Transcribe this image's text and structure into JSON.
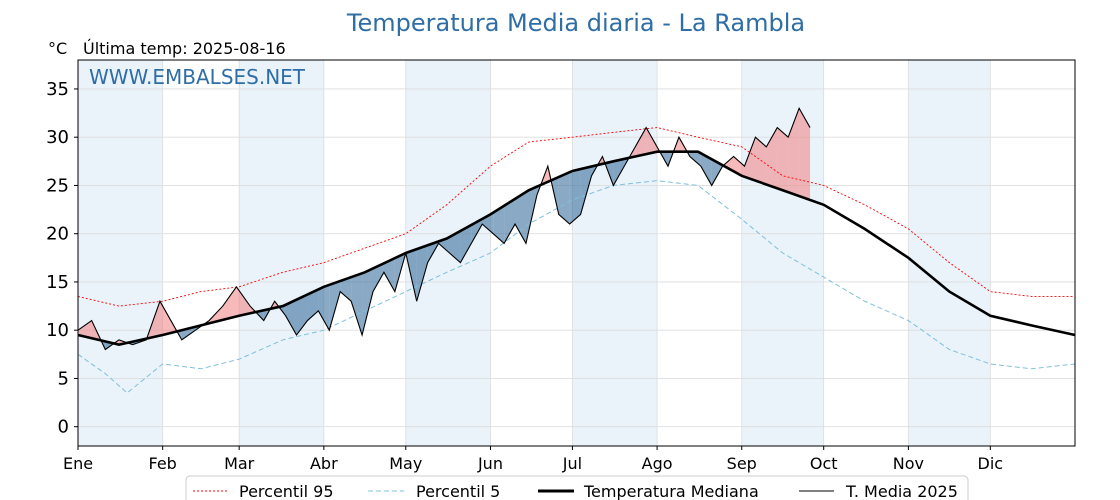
{
  "chart_data": {
    "type": "line",
    "title": "Temperatura Media diaria - La Rambla",
    "unit_label": "°C",
    "last_temp_label": "Última temp: 2025-08-16",
    "watermark": "WWW.EMBALSES.NET",
    "ylim": [
      -2,
      38
    ],
    "y_ticks": [
      0,
      5,
      10,
      15,
      20,
      25,
      30,
      35
    ],
    "x_domain_days": 365,
    "x_tick_labels": [
      "Ene",
      "Feb",
      "Mar",
      "Abr",
      "May",
      "Jun",
      "Jul",
      "Ago",
      "Sep",
      "Oct",
      "Nov",
      "Dic"
    ],
    "grid": true,
    "legend_position": "bottom",
    "colors": {
      "p95": "#ff0000",
      "p5": "#7fc1d9",
      "median": "#000000",
      "current": "#000000",
      "above": "#f08080",
      "below": "#3a6f9e",
      "band": "#eaf2fa"
    },
    "series": [
      {
        "name": "Percentil 95",
        "key": "p95",
        "points": [
          [
            0,
            13.5
          ],
          [
            15,
            12.5
          ],
          [
            31,
            13
          ],
          [
            45,
            14
          ],
          [
            59,
            14.5
          ],
          [
            75,
            16
          ],
          [
            90,
            17
          ],
          [
            105,
            18.5
          ],
          [
            120,
            20
          ],
          [
            135,
            23
          ],
          [
            151,
            27
          ],
          [
            165,
            29.5
          ],
          [
            181,
            30
          ],
          [
            196,
            30.5
          ],
          [
            212,
            31
          ],
          [
            227,
            30
          ],
          [
            243,
            29
          ],
          [
            258,
            26
          ],
          [
            273,
            25
          ],
          [
            288,
            23
          ],
          [
            304,
            20.5
          ],
          [
            319,
            17
          ],
          [
            334,
            14
          ],
          [
            349,
            13.5
          ],
          [
            365,
            13.5
          ]
        ]
      },
      {
        "name": "Percentil 5",
        "key": "p5",
        "points": [
          [
            0,
            7.5
          ],
          [
            10,
            5.5
          ],
          [
            18,
            3.5
          ],
          [
            31,
            6.5
          ],
          [
            45,
            6
          ],
          [
            59,
            7
          ],
          [
            75,
            9
          ],
          [
            90,
            10
          ],
          [
            105,
            12
          ],
          [
            120,
            14
          ],
          [
            135,
            16
          ],
          [
            151,
            18
          ],
          [
            165,
            21
          ],
          [
            181,
            23.5
          ],
          [
            196,
            25
          ],
          [
            212,
            25.5
          ],
          [
            227,
            25
          ],
          [
            243,
            21.5
          ],
          [
            258,
            18
          ],
          [
            273,
            15.5
          ],
          [
            288,
            13
          ],
          [
            304,
            11
          ],
          [
            319,
            8
          ],
          [
            334,
            6.5
          ],
          [
            349,
            6
          ],
          [
            365,
            6.5
          ]
        ]
      },
      {
        "name": "Temperatura Mediana",
        "key": "median",
        "points": [
          [
            0,
            9.5
          ],
          [
            15,
            8.5
          ],
          [
            31,
            9.5
          ],
          [
            45,
            10.5
          ],
          [
            59,
            11.5
          ],
          [
            75,
            12.5
          ],
          [
            90,
            14.5
          ],
          [
            105,
            16
          ],
          [
            120,
            18
          ],
          [
            135,
            19.5
          ],
          [
            151,
            22
          ],
          [
            165,
            24.5
          ],
          [
            181,
            26.5
          ],
          [
            196,
            27.5
          ],
          [
            212,
            28.5
          ],
          [
            227,
            28.5
          ],
          [
            243,
            26
          ],
          [
            258,
            24.5
          ],
          [
            273,
            23
          ],
          [
            288,
            20.5
          ],
          [
            304,
            17.5
          ],
          [
            319,
            14
          ],
          [
            334,
            11.5
          ],
          [
            349,
            10.5
          ],
          [
            365,
            9.5
          ]
        ]
      },
      {
        "name": "T. Media 2025",
        "key": "current",
        "points": [
          [
            0,
            10
          ],
          [
            5,
            11
          ],
          [
            10,
            8
          ],
          [
            15,
            9
          ],
          [
            20,
            8.5
          ],
          [
            25,
            9
          ],
          [
            30,
            13
          ],
          [
            34,
            11
          ],
          [
            38,
            9
          ],
          [
            43,
            10
          ],
          [
            48,
            11
          ],
          [
            53,
            12.5
          ],
          [
            58,
            14.5
          ],
          [
            63,
            12.5
          ],
          [
            68,
            11
          ],
          [
            72,
            13
          ],
          [
            76,
            11.5
          ],
          [
            80,
            9.5
          ],
          [
            84,
            11
          ],
          [
            88,
            12
          ],
          [
            92,
            10
          ],
          [
            96,
            14
          ],
          [
            100,
            13
          ],
          [
            104,
            9.5
          ],
          [
            108,
            14
          ],
          [
            112,
            16
          ],
          [
            116,
            14
          ],
          [
            120,
            18
          ],
          [
            124,
            13
          ],
          [
            128,
            17
          ],
          [
            132,
            19
          ],
          [
            136,
            18
          ],
          [
            140,
            17
          ],
          [
            144,
            19
          ],
          [
            148,
            21
          ],
          [
            152,
            20
          ],
          [
            156,
            19
          ],
          [
            160,
            21
          ],
          [
            164,
            19
          ],
          [
            168,
            24
          ],
          [
            172,
            27
          ],
          [
            176,
            22
          ],
          [
            180,
            21
          ],
          [
            184,
            22
          ],
          [
            188,
            26
          ],
          [
            192,
            28
          ],
          [
            196,
            25
          ],
          [
            200,
            27
          ],
          [
            204,
            29
          ],
          [
            208,
            31
          ],
          [
            212,
            29
          ],
          [
            216,
            27
          ],
          [
            220,
            30
          ],
          [
            224,
            28
          ],
          [
            228,
            27
          ],
          [
            232,
            25
          ],
          [
            236,
            27
          ],
          [
            240,
            28
          ],
          [
            244,
            27
          ],
          [
            248,
            30
          ],
          [
            252,
            29
          ],
          [
            256,
            31
          ],
          [
            260,
            30
          ],
          [
            264,
            33
          ],
          [
            268,
            31
          ]
        ]
      }
    ]
  },
  "legend": {
    "items": [
      {
        "label": "Percentil 95",
        "key": "p95"
      },
      {
        "label": "Percentil 5",
        "key": "p5"
      },
      {
        "label": "Temperatura Mediana",
        "key": "median"
      },
      {
        "label": "T. Media 2025",
        "key": "current"
      }
    ]
  }
}
